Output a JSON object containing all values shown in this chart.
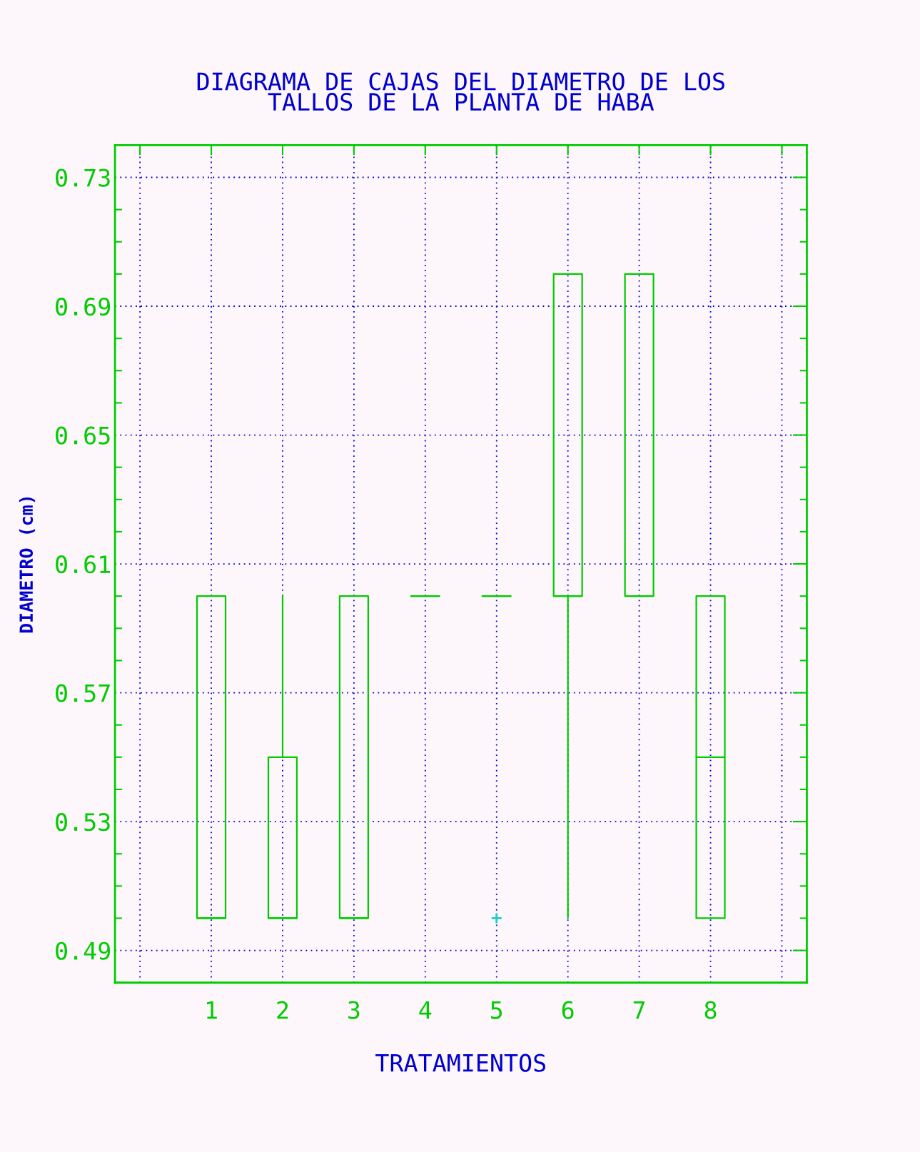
{
  "chart_data": {
    "type": "box",
    "title": "DIAGRAMA DE CAJAS DEL DIAMETRO DE LOS\nTALLOS DE LA PLANTA DE HABA",
    "xlabel": "TRATAMIENTOS",
    "ylabel": "DIAMETRO (cm)",
    "categories": [
      "1",
      "2",
      "3",
      "4",
      "5",
      "6",
      "7",
      "8"
    ],
    "series": [
      {
        "color": "#00cc00",
        "boxes": [
          {
            "low": 0.5,
            "q1": 0.5,
            "median": 0.5,
            "q3": 0.6,
            "high": 0.6
          },
          {
            "low": 0.5,
            "q1": 0.5,
            "median": 0.5,
            "q3": 0.55,
            "high": 0.6
          },
          {
            "low": 0.5,
            "q1": 0.5,
            "median": 0.5,
            "q3": 0.6,
            "high": 0.6
          },
          {
            "low": 0.6,
            "q1": 0.6,
            "median": 0.6,
            "q3": 0.6,
            "high": 0.6
          },
          {
            "low": 0.6,
            "q1": 0.6,
            "median": 0.6,
            "q3": 0.6,
            "high": 0.6,
            "outliers": [
              0.5
            ]
          },
          {
            "low": 0.5,
            "q1": 0.6,
            "median": 0.6,
            "q3": 0.7,
            "high": 0.7
          },
          {
            "low": 0.6,
            "q1": 0.6,
            "median": 0.6,
            "q3": 0.7,
            "high": 0.7
          },
          {
            "low": 0.5,
            "q1": 0.5,
            "median": 0.55,
            "q3": 0.6,
            "high": 0.6
          }
        ]
      }
    ],
    "ylim": [
      0.48,
      0.74
    ],
    "yticks": [
      {
        "value": 0.49,
        "label": "0.49"
      },
      {
        "value": 0.53,
        "label": "0.53"
      },
      {
        "value": 0.57,
        "label": "0.57"
      },
      {
        "value": 0.61,
        "label": "0.61"
      },
      {
        "value": 0.65,
        "label": "0.65"
      },
      {
        "value": 0.69,
        "label": "0.69"
      },
      {
        "value": 0.73,
        "label": "0.73"
      }
    ],
    "grid": true
  }
}
